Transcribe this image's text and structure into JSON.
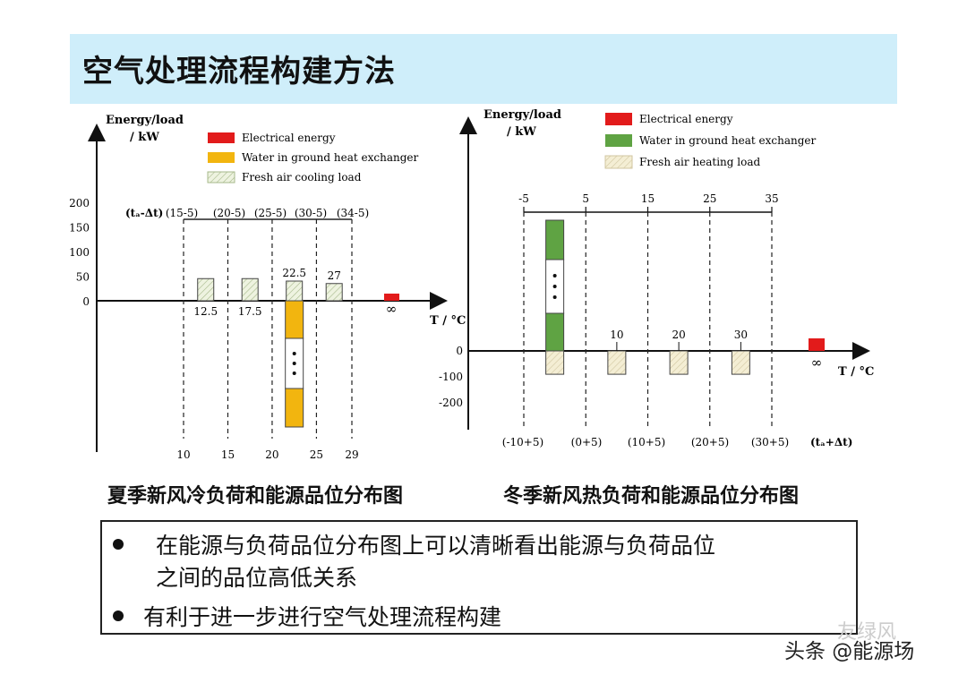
{
  "page_title": "空气处理流程构建方法",
  "chart_data": [
    {
      "type": "bar",
      "caption": "夏季新风冷负荷和能源品位分布图",
      "ylabel": "Energy/load\n/ kW",
      "xlabel": "T / °C",
      "yticks": [
        "200",
        "150",
        "100",
        "50",
        "0"
      ],
      "ylim": [
        0,
        200
      ],
      "legend": [
        {
          "label": "Electrical energy",
          "color": "#e21b1b",
          "pattern": "solid"
        },
        {
          "label": "Water in ground heat exchanger",
          "color": "#f2b50f",
          "pattern": "solid"
        },
        {
          "label": "Fresh air cooling load",
          "color": "#eef3e0",
          "pattern": "hatch"
        }
      ],
      "upper_label": "(tₐ-Δt)",
      "upper_ticks": [
        "(15-5)",
        "(20-5)",
        "(25-5)",
        "(30-5)",
        "(34-5)"
      ],
      "lower_ticks": [
        "10",
        "15",
        "20",
        "25",
        "29"
      ],
      "x_range": [
        10,
        29
      ],
      "bars": [
        {
          "x": 12.5,
          "label": "12.5",
          "value": 45,
          "kind": "fresh-air-load"
        },
        {
          "x": 17.5,
          "label": "17.5",
          "value": 45,
          "kind": "fresh-air-load"
        },
        {
          "x": 22.5,
          "label": "22.5",
          "value": 40,
          "kind": "fresh-air-load"
        },
        {
          "x": 27.0,
          "label": "27",
          "value": 35,
          "kind": "fresh-air-load"
        }
      ],
      "ground_bar": {
        "x": 22.5,
        "kind": "water-ground",
        "extends": "down",
        "ellipsis": "..."
      },
      "electric": {
        "label": "∞",
        "kind": "electrical"
      }
    },
    {
      "type": "bar",
      "caption": "冬季新风热负荷和能源品位分布图",
      "ylabel": "Energy/load\n/ kW",
      "xlabel": "T / °C",
      "yticks": [
        "0",
        "-100",
        "-200"
      ],
      "ylim": [
        -200,
        0
      ],
      "legend": [
        {
          "label": "Electrical energy",
          "color": "#e21b1b",
          "pattern": "solid"
        },
        {
          "label": "Water in ground heat exchanger",
          "color": "#5fa343",
          "pattern": "solid"
        },
        {
          "label": "Fresh air heating load",
          "color": "#f4eed4",
          "pattern": "hatch"
        }
      ],
      "upper_ticks": [
        "-5",
        "5",
        "15",
        "25",
        "35"
      ],
      "lower_label": "(tₐ+Δt)",
      "lower_ticks": [
        "(-10+5)",
        "(0+5)",
        "(10+5)",
        "(20+5)",
        "(30+5)"
      ],
      "x_range": [
        -5,
        35
      ],
      "bars": [
        {
          "x": 0,
          "label": "",
          "value": -90,
          "kind": "fresh-air-load"
        },
        {
          "x": 10,
          "label": "10",
          "value": -90,
          "kind": "fresh-air-load"
        },
        {
          "x": 20,
          "label": "20",
          "value": -90,
          "kind": "fresh-air-load"
        },
        {
          "x": 30,
          "label": "30",
          "value": -90,
          "kind": "fresh-air-load"
        }
      ],
      "ground_bar": {
        "x": 0,
        "kind": "water-ground",
        "extends": "up",
        "ellipsis": "..."
      },
      "electric": {
        "label": "∞",
        "kind": "electrical"
      }
    }
  ],
  "bullets": [
    {
      "line1": "在能源与负荷品位分布图上可以清晰看出能源与负荷品位",
      "line2": "之间的品位高低关系"
    },
    {
      "line1": "有利于进一步进行空气处理流程构建"
    }
  ],
  "watermark": {
    "brand": "头条 @能源场",
    "faint": "友绿风"
  }
}
